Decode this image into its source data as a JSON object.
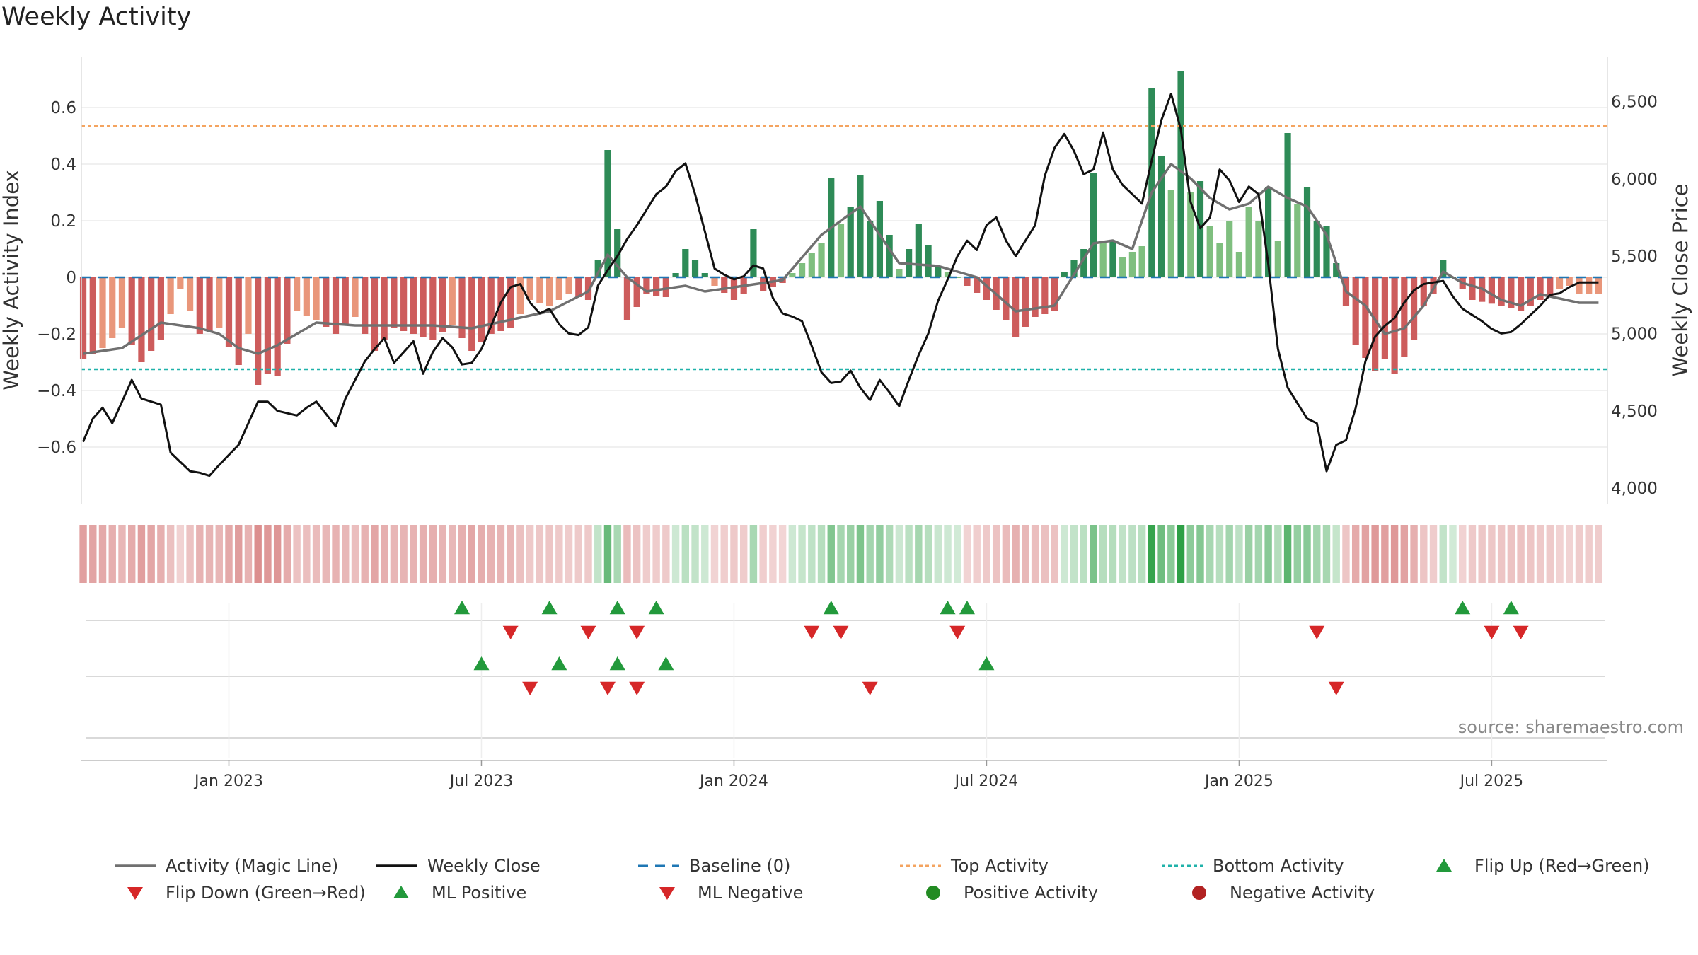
{
  "title": "Weekly Activity",
  "source": "source: sharemaestro.com",
  "colors": {
    "pos_dark": "#2e8b57",
    "pos_light": "#7fbf7f",
    "neg_dark": "#cd5c5c",
    "neg_light": "#e9967a",
    "magic_line": "#707070",
    "close_line": "#111111",
    "baseline": "#1f77b4",
    "top": "#f4a460",
    "bottom": "#20b2aa",
    "up_marker": "#22993b",
    "down_marker": "#d62728"
  },
  "legend": [
    {
      "label": "Activity (Magic Line)",
      "kind": "line",
      "color": "#707070"
    },
    {
      "label": "Weekly Close",
      "kind": "line",
      "color": "#111111"
    },
    {
      "label": "Baseline (0)",
      "kind": "dash",
      "color": "#1f77b4"
    },
    {
      "label": "Top Activity",
      "kind": "dot",
      "color": "#f4a460"
    },
    {
      "label": "Bottom Activity",
      "kind": "dot",
      "color": "#20b2aa"
    },
    {
      "label": "Flip Up (Red→Green)",
      "kind": "tri-up",
      "color": "#22993b"
    },
    {
      "label": "Flip Down (Green→Red)",
      "kind": "tri-down",
      "color": "#d62728"
    },
    {
      "label": "ML Positive",
      "kind": "tri-up",
      "color": "#22993b"
    },
    {
      "label": "ML Negative",
      "kind": "tri-down",
      "color": "#d62728"
    },
    {
      "label": "Positive Activity",
      "kind": "circle",
      "color": "#228b22"
    },
    {
      "label": "Negative Activity",
      "kind": "circle",
      "color": "#b22222"
    }
  ],
  "chart_data": {
    "type": "bar",
    "title": "Weekly Activity",
    "ylabel": "Weekly Activity Index",
    "y2label": "Weekly Close Price",
    "ylim": [
      -0.8,
      0.78
    ],
    "y2lim": [
      3900,
      6790
    ],
    "yticks": [
      0.6,
      0.4,
      0.2,
      0,
      -0.2,
      -0.4,
      -0.6
    ],
    "ytick_labels": [
      "0.6",
      "0.4",
      "0.2",
      "0",
      "−0.2",
      "−0.4",
      "−0.6"
    ],
    "y2ticks": [
      6500,
      6000,
      5500,
      5000,
      4500,
      4000
    ],
    "y2tick_labels": [
      "6,500",
      "6,000",
      "5,500",
      "5,000",
      "4,500",
      "4,000"
    ],
    "x_start_week": -15,
    "x_end_week": 141,
    "xtick_weeks": [
      0,
      26,
      52,
      78,
      104,
      130
    ],
    "xtick_labels": [
      "Jan 2023",
      "Jul 2023",
      "Jan 2024",
      "Jul 2024",
      "Jan 2025",
      "Jul 2025"
    ],
    "top_activity": 0.535,
    "bottom_activity": -0.325,
    "baseline": 0,
    "activity_knots": [
      [
        0,
        -0.29
      ],
      [
        2,
        -0.25
      ],
      [
        4,
        -0.18
      ],
      [
        6,
        -0.3
      ],
      [
        8,
        -0.22
      ],
      [
        10,
        -0.04
      ],
      [
        12,
        -0.2
      ],
      [
        14,
        -0.18
      ],
      [
        16,
        -0.31
      ],
      [
        17,
        -0.2
      ],
      [
        18,
        -0.38
      ],
      [
        19,
        -0.34
      ],
      [
        20,
        -0.35
      ],
      [
        22,
        -0.12
      ],
      [
        24,
        -0.15
      ],
      [
        26,
        -0.2
      ],
      [
        28,
        -0.14
      ],
      [
        30,
        -0.26
      ],
      [
        32,
        -0.18
      ],
      [
        34,
        -0.2
      ],
      [
        36,
        -0.22
      ],
      [
        38,
        -0.17
      ],
      [
        40,
        -0.26
      ],
      [
        42,
        -0.2
      ],
      [
        44,
        -0.18
      ],
      [
        46,
        -0.08
      ],
      [
        48,
        -0.1
      ],
      [
        50,
        -0.06
      ],
      [
        52,
        -0.08
      ],
      [
        53,
        0.06
      ],
      [
        54,
        0.45
      ],
      [
        55,
        0.17
      ],
      [
        56,
        -0.15
      ],
      [
        58,
        -0.06
      ],
      [
        60,
        -0.07
      ],
      [
        62,
        0.1
      ],
      [
        63,
        0.06
      ],
      [
        65,
        -0.03
      ],
      [
        67,
        -0.08
      ],
      [
        68,
        -0.06
      ],
      [
        69,
        0.17
      ],
      [
        70,
        -0.05
      ],
      [
        72,
        -0.02
      ],
      [
        74,
        0.05
      ],
      [
        76,
        0.12
      ],
      [
        77,
        0.35
      ],
      [
        78,
        0.19
      ],
      [
        79,
        0.25
      ],
      [
        80,
        0.36
      ],
      [
        81,
        0.2
      ],
      [
        82,
        0.27
      ],
      [
        84,
        0.03
      ],
      [
        85,
        0.1
      ],
      [
        86,
        0.19
      ],
      [
        88,
        0.04
      ],
      [
        90,
        0.0
      ],
      [
        91,
        -0.03
      ],
      [
        93,
        -0.08
      ],
      [
        95,
        -0.15
      ],
      [
        96,
        -0.21
      ],
      [
        98,
        -0.14
      ],
      [
        100,
        -0.12
      ],
      [
        101,
        0.02
      ],
      [
        103,
        0.1
      ],
      [
        104,
        0.37
      ],
      [
        105,
        0.12
      ],
      [
        106,
        0.13
      ],
      [
        107,
        0.07
      ],
      [
        109,
        0.11
      ],
      [
        110,
        0.67
      ],
      [
        111,
        0.43
      ],
      [
        112,
        0.31
      ],
      [
        113,
        0.73
      ],
      [
        114,
        0.3
      ],
      [
        115,
        0.34
      ],
      [
        116,
        0.18
      ],
      [
        117,
        0.12
      ],
      [
        118,
        0.2
      ],
      [
        119,
        0.09
      ],
      [
        120,
        0.25
      ],
      [
        121,
        0.2
      ],
      [
        122,
        0.32
      ],
      [
        123,
        0.13
      ],
      [
        124,
        0.51
      ],
      [
        125,
        0.26
      ],
      [
        126,
        0.32
      ],
      [
        127,
        0.2
      ],
      [
        128,
        0.18
      ],
      [
        129,
        0.05
      ],
      [
        130,
        -0.1
      ],
      [
        131,
        -0.24
      ],
      [
        133,
        -0.33
      ],
      [
        134,
        -0.29
      ],
      [
        135,
        -0.34
      ],
      [
        137,
        -0.22
      ],
      [
        138,
        -0.1
      ],
      [
        139,
        -0.06
      ],
      [
        140,
        0.06
      ],
      [
        141,
        0.0
      ],
      [
        143,
        -0.08
      ],
      [
        146,
        -0.1
      ],
      [
        148,
        -0.12
      ],
      [
        150,
        -0.08
      ],
      [
        151,
        -0.07
      ],
      [
        152,
        -0.04
      ],
      [
        153,
        -0.03
      ],
      [
        154,
        -0.06
      ]
    ],
    "magic_knots": [
      [
        0,
        -0.27
      ],
      [
        4,
        -0.25
      ],
      [
        8,
        -0.16
      ],
      [
        12,
        -0.18
      ],
      [
        14,
        -0.2
      ],
      [
        16,
        -0.25
      ],
      [
        18,
        -0.27
      ],
      [
        20,
        -0.24
      ],
      [
        24,
        -0.16
      ],
      [
        28,
        -0.17
      ],
      [
        32,
        -0.17
      ],
      [
        36,
        -0.17
      ],
      [
        40,
        -0.18
      ],
      [
        44,
        -0.15
      ],
      [
        48,
        -0.12
      ],
      [
        52,
        -0.05
      ],
      [
        54,
        0.08
      ],
      [
        56,
        0.0
      ],
      [
        58,
        -0.05
      ],
      [
        62,
        -0.03
      ],
      [
        64,
        -0.05
      ],
      [
        68,
        -0.03
      ],
      [
        72,
        -0.01
      ],
      [
        76,
        0.15
      ],
      [
        80,
        0.25
      ],
      [
        84,
        0.05
      ],
      [
        88,
        0.04
      ],
      [
        92,
        0.0
      ],
      [
        96,
        -0.12
      ],
      [
        100,
        -0.1
      ],
      [
        104,
        0.12
      ],
      [
        106,
        0.13
      ],
      [
        108,
        0.1
      ],
      [
        110,
        0.3
      ],
      [
        112,
        0.4
      ],
      [
        114,
        0.35
      ],
      [
        116,
        0.28
      ],
      [
        118,
        0.24
      ],
      [
        120,
        0.26
      ],
      [
        122,
        0.32
      ],
      [
        124,
        0.28
      ],
      [
        126,
        0.25
      ],
      [
        128,
        0.15
      ],
      [
        130,
        -0.05
      ],
      [
        132,
        -0.1
      ],
      [
        134,
        -0.2
      ],
      [
        136,
        -0.18
      ],
      [
        138,
        -0.1
      ],
      [
        140,
        0.02
      ],
      [
        142,
        -0.02
      ],
      [
        144,
        -0.04
      ],
      [
        146,
        -0.08
      ],
      [
        148,
        -0.1
      ],
      [
        150,
        -0.06
      ],
      [
        154,
        -0.09
      ]
    ],
    "close_knots": [
      [
        0,
        4300
      ],
      [
        1,
        4450
      ],
      [
        2,
        4520
      ],
      [
        3,
        4420
      ],
      [
        5,
        4700
      ],
      [
        6,
        4580
      ],
      [
        8,
        4540
      ],
      [
        9,
        4230
      ],
      [
        11,
        4110
      ],
      [
        12,
        4100
      ],
      [
        13,
        4080
      ],
      [
        14,
        4150
      ],
      [
        16,
        4280
      ],
      [
        18,
        4560
      ],
      [
        19,
        4560
      ],
      [
        20,
        4500
      ],
      [
        22,
        4470
      ],
      [
        23,
        4520
      ],
      [
        24,
        4560
      ],
      [
        25,
        4480
      ],
      [
        26,
        4400
      ],
      [
        27,
        4580
      ],
      [
        28,
        4700
      ],
      [
        29,
        4820
      ],
      [
        30,
        4900
      ],
      [
        31,
        4970
      ],
      [
        32,
        4810
      ],
      [
        33,
        4880
      ],
      [
        34,
        4950
      ],
      [
        35,
        4740
      ],
      [
        36,
        4880
      ],
      [
        37,
        4970
      ],
      [
        38,
        4910
      ],
      [
        39,
        4800
      ],
      [
        40,
        4810
      ],
      [
        41,
        4900
      ],
      [
        42,
        5050
      ],
      [
        43,
        5200
      ],
      [
        44,
        5300
      ],
      [
        45,
        5320
      ],
      [
        46,
        5200
      ],
      [
        47,
        5130
      ],
      [
        48,
        5160
      ],
      [
        49,
        5060
      ],
      [
        50,
        5000
      ],
      [
        51,
        4990
      ],
      [
        52,
        5040
      ],
      [
        53,
        5310
      ],
      [
        54,
        5410
      ],
      [
        55,
        5500
      ],
      [
        56,
        5610
      ],
      [
        57,
        5700
      ],
      [
        58,
        5800
      ],
      [
        59,
        5900
      ],
      [
        60,
        5950
      ],
      [
        61,
        6050
      ],
      [
        62,
        6100
      ],
      [
        63,
        5900
      ],
      [
        64,
        5660
      ],
      [
        65,
        5420
      ],
      [
        66,
        5380
      ],
      [
        67,
        5350
      ],
      [
        68,
        5370
      ],
      [
        69,
        5440
      ],
      [
        70,
        5420
      ],
      [
        71,
        5230
      ],
      [
        72,
        5130
      ],
      [
        73,
        5110
      ],
      [
        74,
        5080
      ],
      [
        75,
        4920
      ],
      [
        76,
        4750
      ],
      [
        77,
        4680
      ],
      [
        78,
        4690
      ],
      [
        79,
        4760
      ],
      [
        80,
        4650
      ],
      [
        81,
        4570
      ],
      [
        82,
        4700
      ],
      [
        83,
        4620
      ],
      [
        84,
        4530
      ],
      [
        85,
        4700
      ],
      [
        86,
        4860
      ],
      [
        87,
        5000
      ],
      [
        88,
        5210
      ],
      [
        89,
        5350
      ],
      [
        90,
        5500
      ],
      [
        91,
        5600
      ],
      [
        92,
        5540
      ],
      [
        93,
        5700
      ],
      [
        94,
        5750
      ],
      [
        95,
        5600
      ],
      [
        96,
        5500
      ],
      [
        97,
        5600
      ],
      [
        98,
        5700
      ],
      [
        99,
        6020
      ],
      [
        100,
        6200
      ],
      [
        101,
        6290
      ],
      [
        102,
        6180
      ],
      [
        103,
        6030
      ],
      [
        104,
        6060
      ],
      [
        105,
        6300
      ],
      [
        106,
        6060
      ],
      [
        107,
        5960
      ],
      [
        108,
        5900
      ],
      [
        109,
        5840
      ],
      [
        110,
        6120
      ],
      [
        111,
        6380
      ],
      [
        112,
        6550
      ],
      [
        113,
        6320
      ],
      [
        114,
        5850
      ],
      [
        115,
        5680
      ],
      [
        116,
        5750
      ],
      [
        117,
        6060
      ],
      [
        118,
        5990
      ],
      [
        119,
        5850
      ],
      [
        120,
        5950
      ],
      [
        121,
        5900
      ],
      [
        122,
        5450
      ],
      [
        123,
        4900
      ],
      [
        124,
        4650
      ],
      [
        125,
        4550
      ],
      [
        126,
        4450
      ],
      [
        127,
        4420
      ],
      [
        128,
        4110
      ],
      [
        129,
        4280
      ],
      [
        130,
        4310
      ],
      [
        131,
        4520
      ],
      [
        132,
        4820
      ],
      [
        133,
        4980
      ],
      [
        134,
        5050
      ],
      [
        135,
        5100
      ],
      [
        136,
        5200
      ],
      [
        137,
        5280
      ],
      [
        138,
        5320
      ],
      [
        139,
        5330
      ],
      [
        140,
        5340
      ],
      [
        141,
        5240
      ],
      [
        142,
        5160
      ],
      [
        143,
        5120
      ],
      [
        144,
        5080
      ],
      [
        145,
        5030
      ],
      [
        146,
        5000
      ],
      [
        147,
        5010
      ],
      [
        148,
        5060
      ],
      [
        149,
        5120
      ],
      [
        150,
        5180
      ],
      [
        151,
        5250
      ],
      [
        152,
        5260
      ],
      [
        153,
        5300
      ],
      [
        154,
        5330
      ]
    ],
    "flip_up_weeks": [
      24,
      33,
      40,
      44,
      62,
      74,
      76,
      127,
      132
    ],
    "flip_down_weeks": [
      29,
      37,
      42,
      60,
      63,
      75,
      112,
      130,
      133
    ],
    "ml_positive_weeks": [
      26,
      34,
      40,
      45,
      78
    ],
    "ml_negative_weeks": [
      31,
      39,
      42,
      66,
      114
    ]
  }
}
